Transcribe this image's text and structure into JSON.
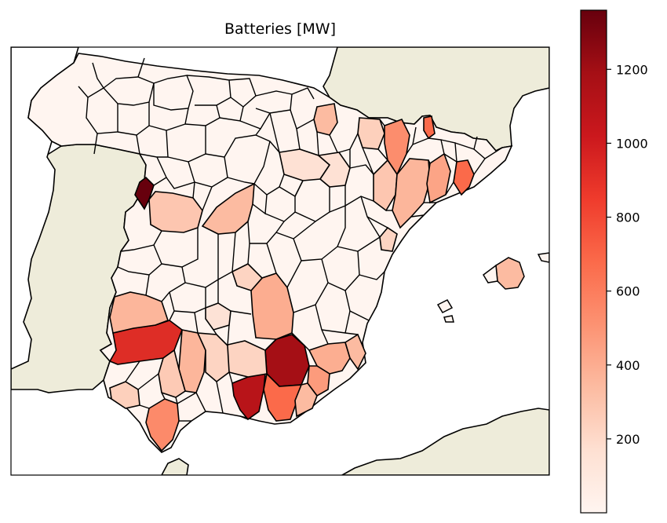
{
  "title": "Batteries [MW]",
  "colors": {
    "land_other": "#eeecda",
    "sea": "#ffffff",
    "border": "#000000",
    "cmap": [
      "#fff5f0",
      "#fee0d2",
      "#fcbba1",
      "#fc9272",
      "#fb6a4a",
      "#ef3b2c",
      "#cb181d",
      "#a50f15",
      "#67000d"
    ]
  },
  "colorbar": {
    "min": 0,
    "max": 1360,
    "ticks": [
      200,
      400,
      600,
      800,
      1000,
      1200
    ]
  }
}
